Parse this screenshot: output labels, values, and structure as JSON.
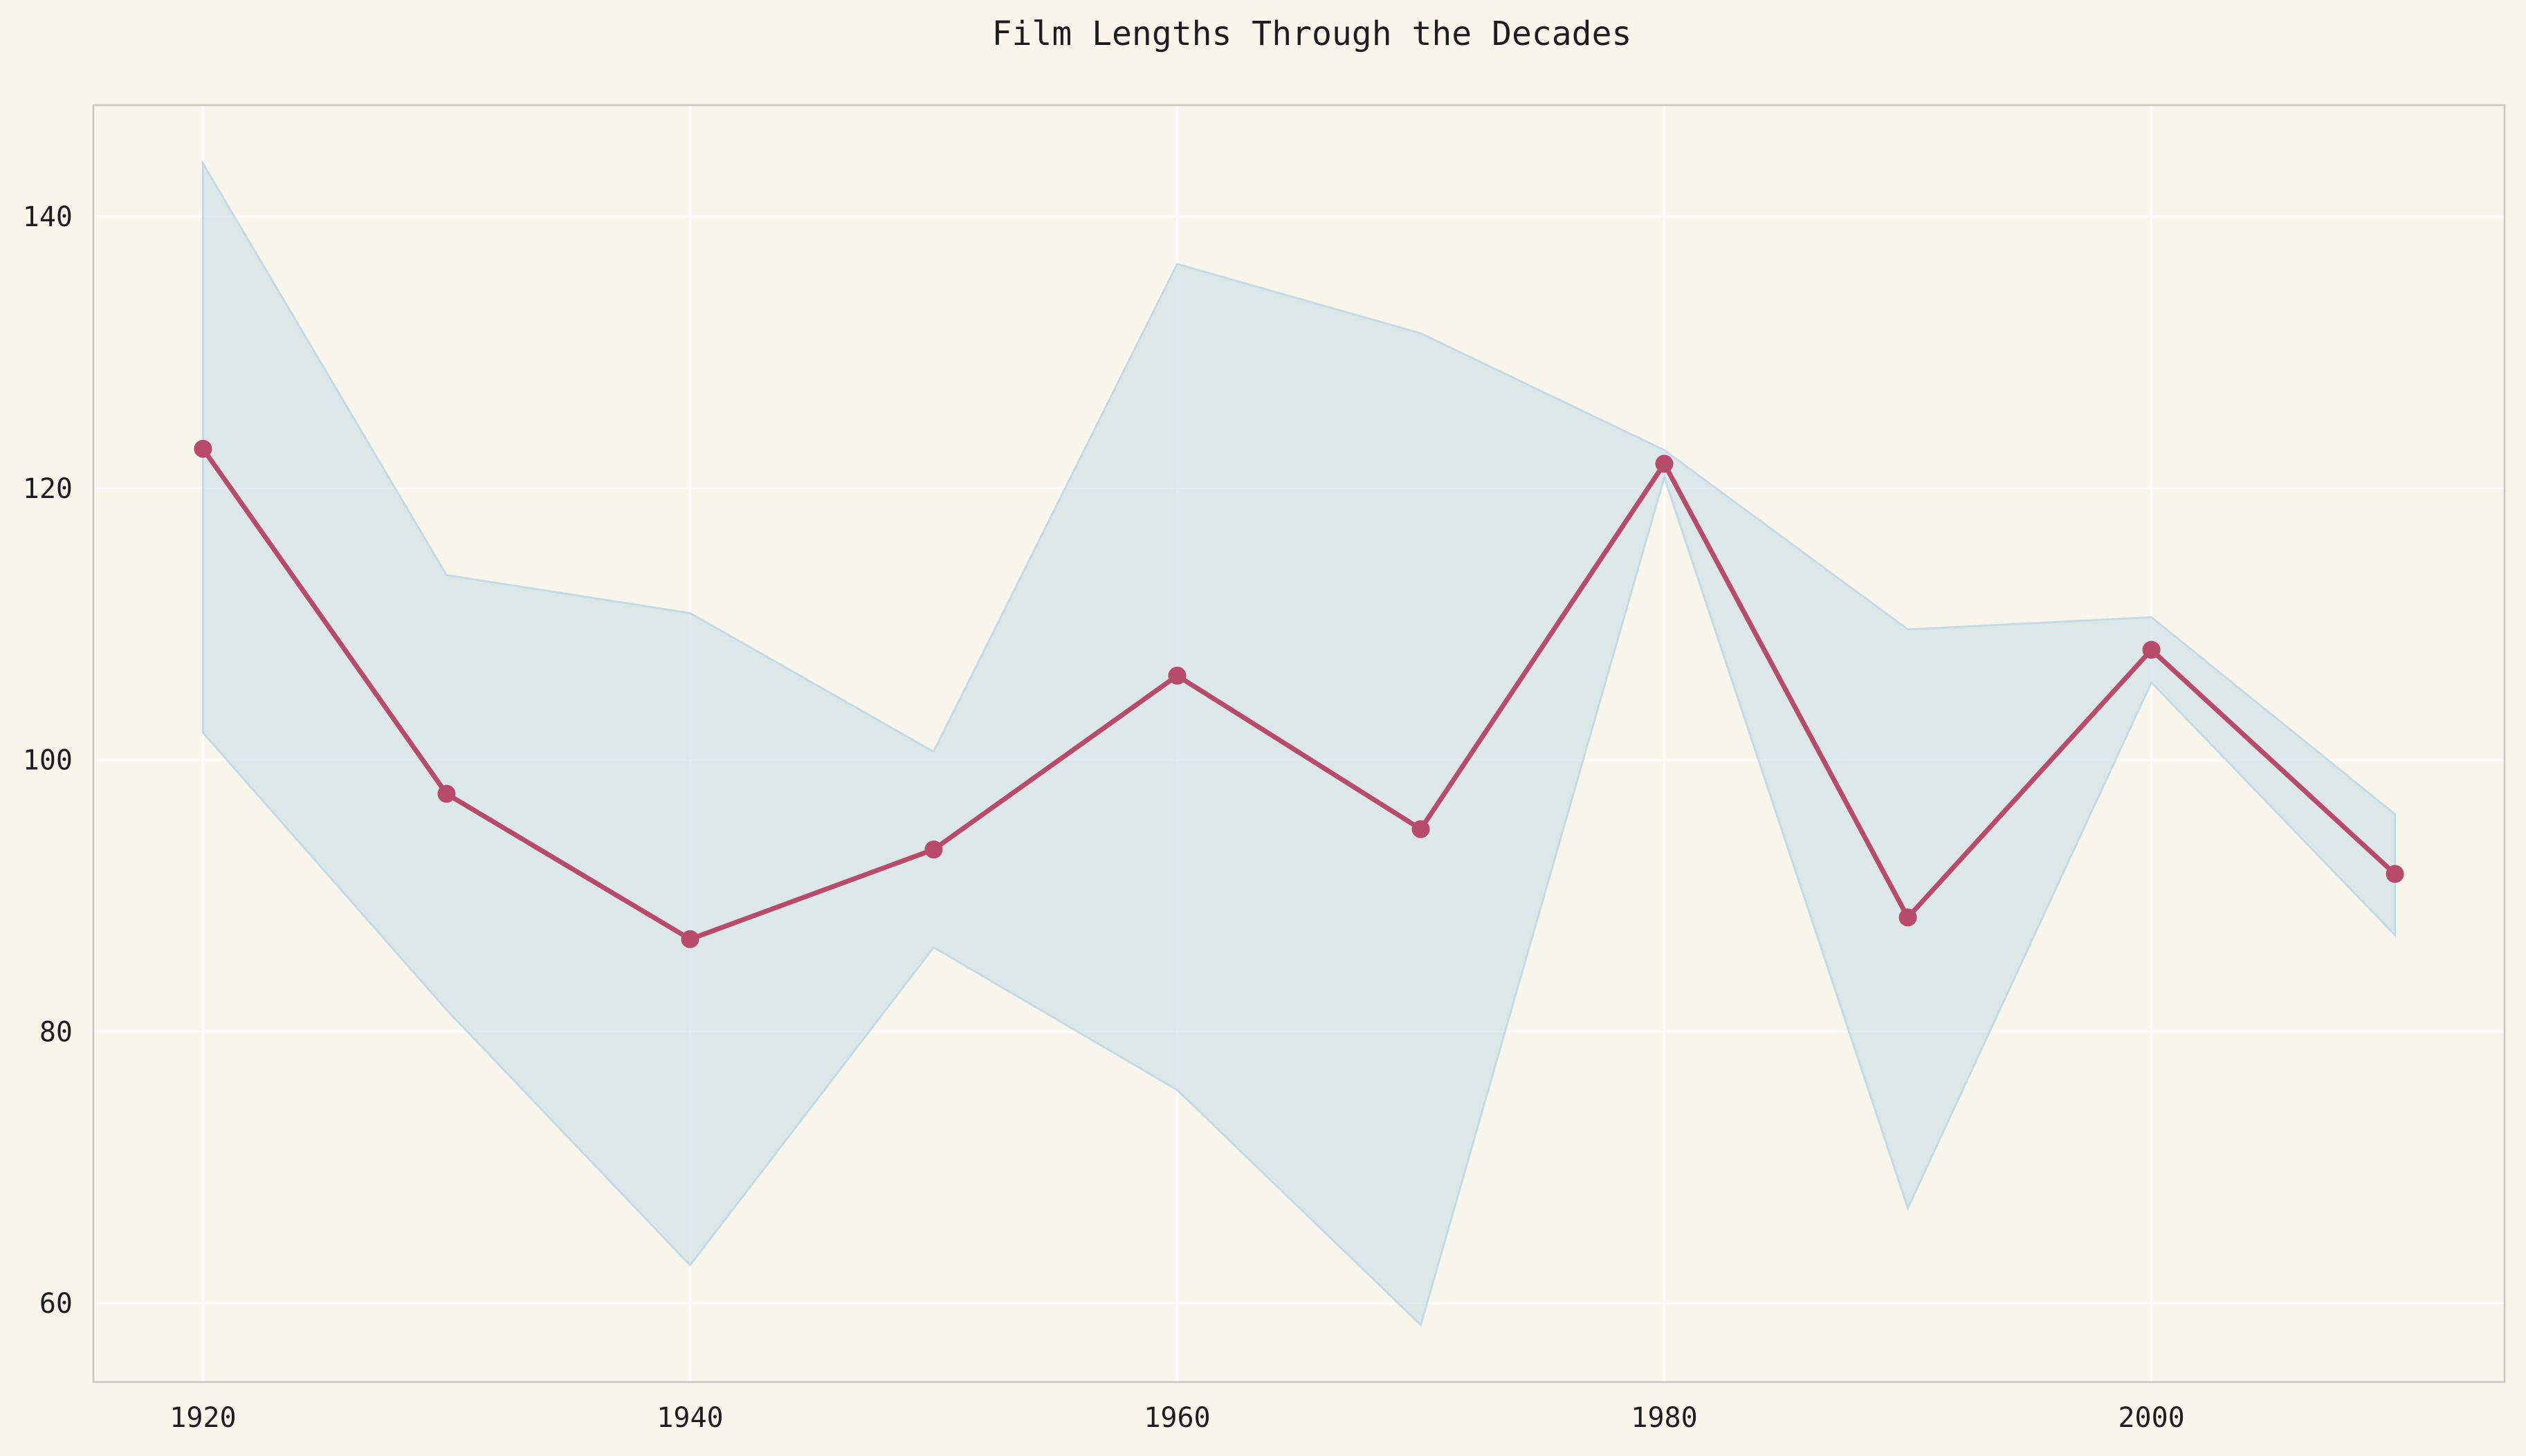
{
  "chart_data": {
    "type": "line",
    "title": "Film Lengths Through the Decades",
    "xlabel": "",
    "ylabel": "",
    "x": [
      1920,
      1930,
      1940,
      1950,
      1960,
      1970,
      1980,
      1990,
      2000,
      2010
    ],
    "series": [
      {
        "values": [
          122.9,
          97.5,
          86.8,
          93.4,
          106.2,
          94.9,
          121.8,
          88.4,
          108.1,
          91.6
        ],
        "color": "#b84a6b",
        "marker": "circle"
      }
    ],
    "band": {
      "lower": [
        102.0,
        81.6,
        62.8,
        86.2,
        75.7,
        58.4,
        120.8,
        67.0,
        105.7,
        87.1
      ],
      "upper": [
        143.9,
        113.6,
        110.8,
        100.6,
        136.5,
        131.4,
        122.8,
        109.6,
        110.5,
        96.0
      ],
      "color": "#c4dbe6"
    },
    "xlim": [
      1915.5,
      2014.5
    ],
    "ylim": [
      54.2,
      148.2
    ],
    "xticks": [
      1920,
      1940,
      1960,
      1980,
      2000
    ],
    "yticks": [
      60,
      80,
      100,
      120,
      140
    ],
    "grid": true,
    "legend": "none",
    "colors": {
      "background": "#f8f5ea",
      "grid": "#ffffff",
      "frame": "#c8c8c0",
      "text": "#1e1e1e"
    }
  }
}
